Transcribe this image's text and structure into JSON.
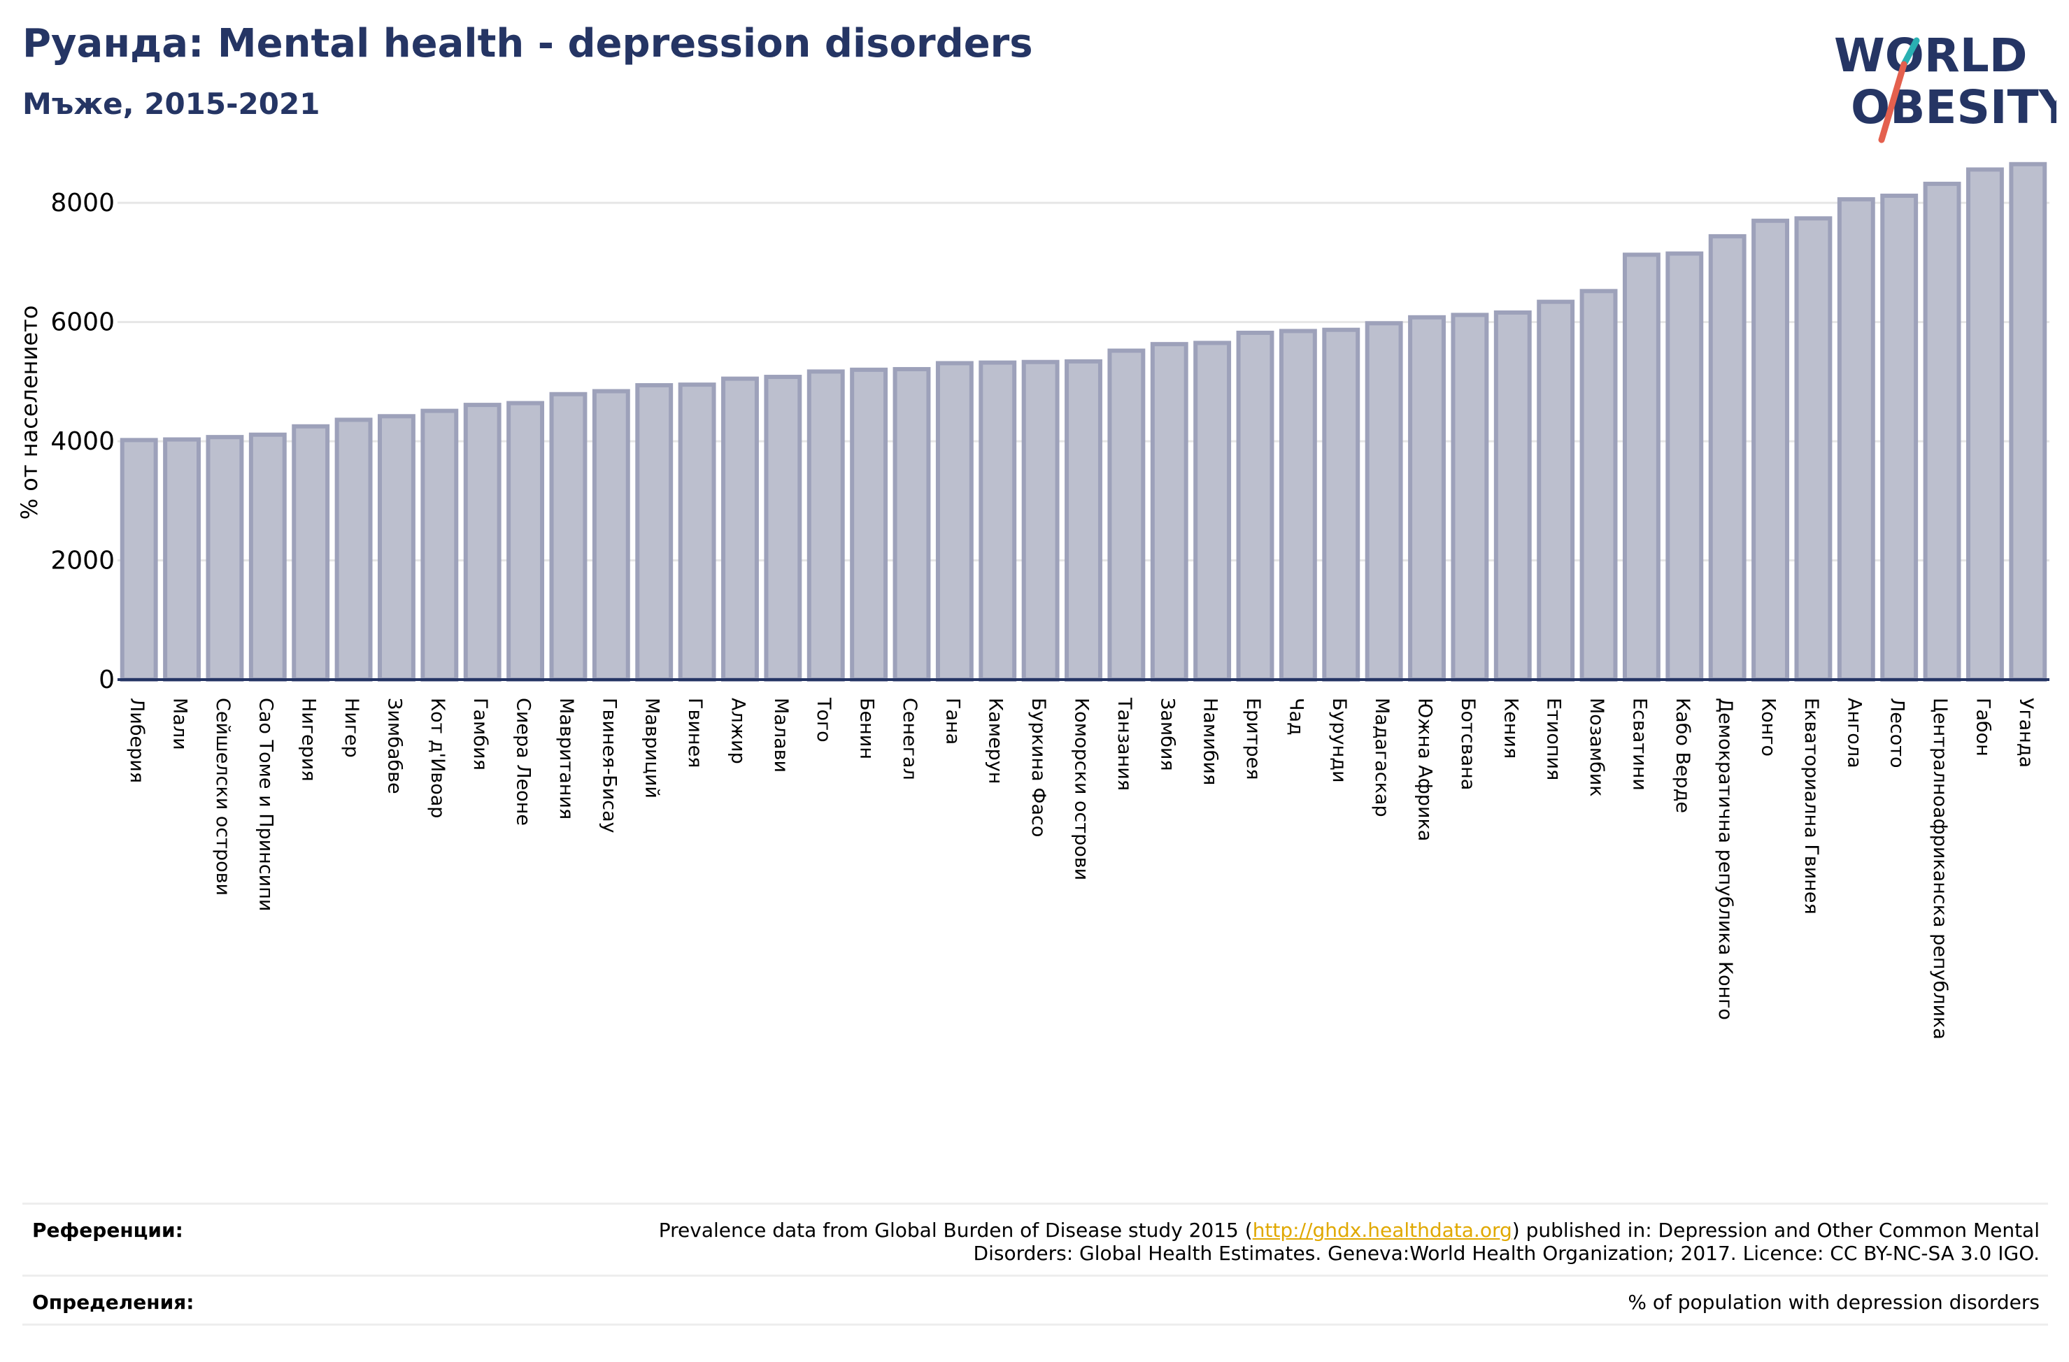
{
  "header": {
    "title": "Руанда: Mental health - depression disorders",
    "subtitle": "Мъже, 2015-2021"
  },
  "logo": {
    "line1": "WORLD",
    "line2": "OBESITY"
  },
  "colors": {
    "title": "#253564",
    "bar_fill": "#bcbfce",
    "bar_stroke": "#9da1ba",
    "grid": "#e6e6e6",
    "axis": "#253564",
    "logo_navy": "#253564",
    "logo_teal": "#2ab0b2",
    "logo_red": "#e4604e",
    "link": "#e0a800"
  },
  "chart_data": {
    "type": "bar",
    "ylabel": "% от населението",
    "ylim": [
      0,
      8800
    ],
    "yticks": [
      0,
      2000,
      4000,
      6000,
      8000
    ],
    "grid": true,
    "categories": [
      "Либерия",
      "Мали",
      "Сейшелски острови",
      "Сао Томе и Принсипи",
      "Нигерия",
      "Нигер",
      "Зимбабве",
      "Кот д'Ивоар",
      "Гамбия",
      "Сиера Леоне",
      "Мавритания",
      "Гвинея-Бисау",
      "Мавриций",
      "Гвинея",
      "Алжир",
      "Малави",
      "Того",
      "Бенин",
      "Сенегал",
      "Гана",
      "Камерун",
      "Буркина Фасо",
      "Коморски острови",
      "Танзания",
      "Замбия",
      "Намибия",
      "Еритрея",
      "Чад",
      "Бурунди",
      "Мадагаскар",
      "Южна Африка",
      "Ботсвана",
      "Кения",
      "Етиопия",
      "Мозамбик",
      "Есватини",
      "Кабо Верде",
      "Демократична република Конго",
      "Конго",
      "Екваториална Гвинея",
      "Ангола",
      "Лесото",
      "Централноафриканска република",
      "Габон",
      "Уганда"
    ],
    "values": [
      4020,
      4030,
      4070,
      4110,
      4250,
      4360,
      4420,
      4510,
      4610,
      4640,
      4790,
      4840,
      4940,
      4950,
      5050,
      5080,
      5170,
      5200,
      5210,
      5310,
      5320,
      5330,
      5340,
      5520,
      5630,
      5650,
      5820,
      5850,
      5870,
      5980,
      6080,
      6120,
      6160,
      6340,
      6520,
      7130,
      7150,
      7440,
      7700,
      7740,
      8060,
      8120,
      8320,
      8560,
      8650
    ]
  },
  "footer": {
    "references_label": "Референции:",
    "references_pre": "Prevalence data from Global Burden of Disease study 2015 (",
    "references_link": "http://ghdx.healthdata.org",
    "references_post": ") published in: Depression and Other Common Mental",
    "references_line2": "Disorders: Global Health Estimates. Geneva:World Health Organization; 2017. Licence: CC BY-NC-SA 3.0 IGO.",
    "definitions_label": "Определения:",
    "definitions_text": "% of population with depression disorders"
  }
}
